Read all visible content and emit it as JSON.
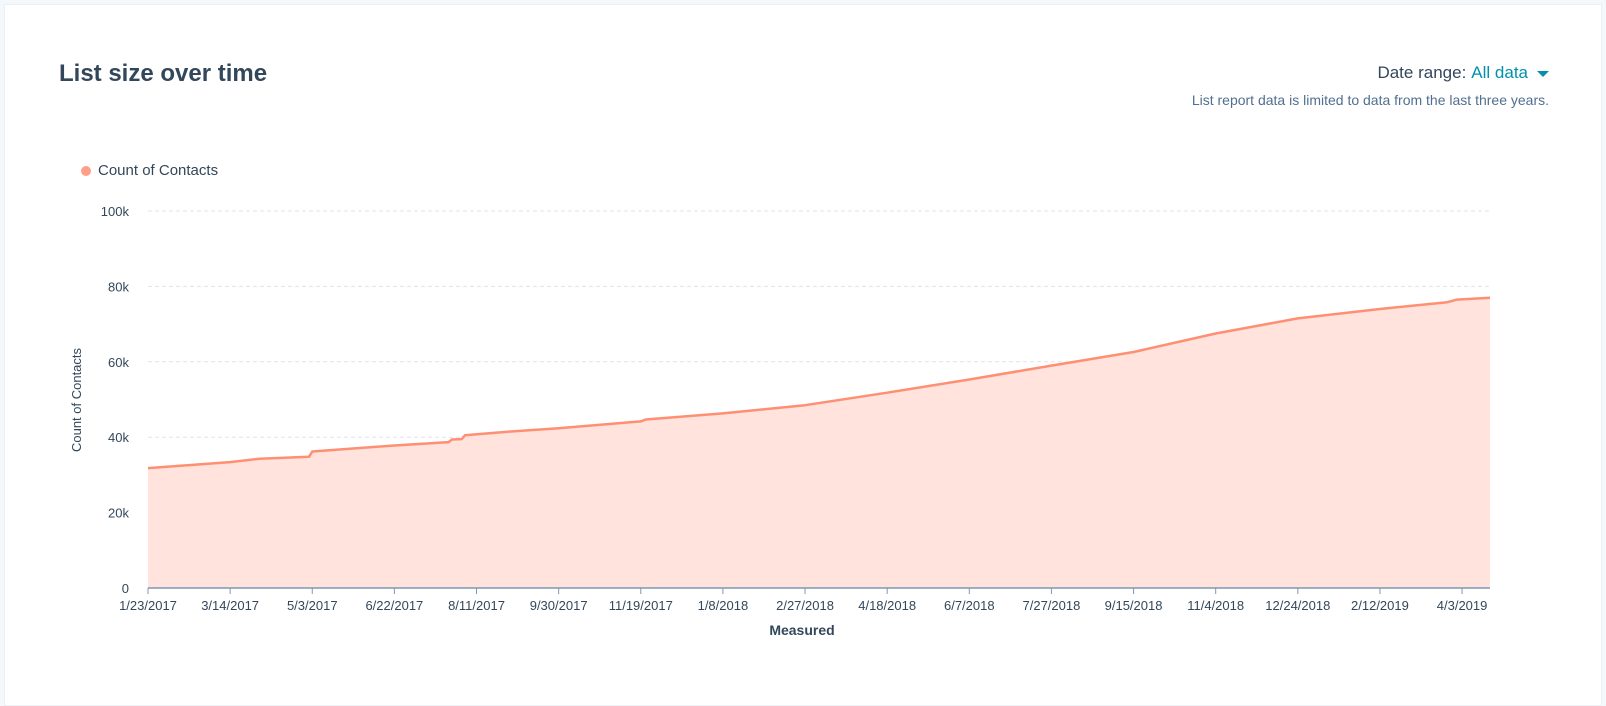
{
  "header": {
    "title": "List size over time",
    "date_range_label": "Date range:",
    "date_range_value": "All data",
    "note": "List report data is limited to data from the last three years."
  },
  "colors": {
    "line": "#ff8f73",
    "fill": "#ffe3dc",
    "accent": "#0091ae",
    "grid": "#dfe3eb",
    "axis": "#7c98b6",
    "text": "#33475b"
  },
  "chart_data": {
    "type": "area",
    "ylabel": "Count of Contacts",
    "xlabel": "Measured",
    "ylim": [
      0,
      100000
    ],
    "yticks": [
      {
        "value": 0,
        "label": "0"
      },
      {
        "value": 20000,
        "label": "20k"
      },
      {
        "value": 40000,
        "label": "40k"
      },
      {
        "value": 60000,
        "label": "60k"
      },
      {
        "value": 80000,
        "label": "80k"
      },
      {
        "value": 100000,
        "label": "100k"
      }
    ],
    "xlim": [
      "2017-01-23",
      "2019-04-20"
    ],
    "xticks": [
      {
        "date": "2017-01-23",
        "label": "1/23/2017"
      },
      {
        "date": "2017-03-14",
        "label": "3/14/2017"
      },
      {
        "date": "2017-05-03",
        "label": "5/3/2017"
      },
      {
        "date": "2017-06-22",
        "label": "6/22/2017"
      },
      {
        "date": "2017-08-11",
        "label": "8/11/2017"
      },
      {
        "date": "2017-09-30",
        "label": "9/30/2017"
      },
      {
        "date": "2017-11-19",
        "label": "11/19/2017"
      },
      {
        "date": "2018-01-08",
        "label": "1/8/2018"
      },
      {
        "date": "2018-02-27",
        "label": "2/27/2018"
      },
      {
        "date": "2018-04-18",
        "label": "4/18/2018"
      },
      {
        "date": "2018-06-07",
        "label": "6/7/2018"
      },
      {
        "date": "2018-07-27",
        "label": "7/27/2018"
      },
      {
        "date": "2018-09-15",
        "label": "9/15/2018"
      },
      {
        "date": "2018-11-04",
        "label": "11/4/2018"
      },
      {
        "date": "2018-12-24",
        "label": "12/24/2018"
      },
      {
        "date": "2019-02-12",
        "label": "2/12/2019"
      },
      {
        "date": "2019-04-03",
        "label": "4/3/2019"
      }
    ],
    "grid": true,
    "legend": "top-left",
    "series": [
      {
        "name": "Count of Contacts",
        "points": [
          {
            "x": "2017-01-23",
            "y": 31800
          },
          {
            "x": "2017-03-14",
            "y": 33400
          },
          {
            "x": "2017-04-01",
            "y": 34300
          },
          {
            "x": "2017-05-01",
            "y": 34800
          },
          {
            "x": "2017-05-03",
            "y": 36200
          },
          {
            "x": "2017-06-22",
            "y": 37800
          },
          {
            "x": "2017-07-25",
            "y": 38700
          },
          {
            "x": "2017-07-27",
            "y": 39400
          },
          {
            "x": "2017-08-02",
            "y": 39500
          },
          {
            "x": "2017-08-04",
            "y": 40500
          },
          {
            "x": "2017-09-01",
            "y": 41500
          },
          {
            "x": "2017-09-30",
            "y": 42400
          },
          {
            "x": "2017-11-19",
            "y": 44200
          },
          {
            "x": "2017-11-22",
            "y": 44700
          },
          {
            "x": "2018-01-08",
            "y": 46300
          },
          {
            "x": "2018-02-27",
            "y": 48500
          },
          {
            "x": "2018-04-18",
            "y": 51800
          },
          {
            "x": "2018-06-07",
            "y": 55300
          },
          {
            "x": "2018-07-27",
            "y": 59000
          },
          {
            "x": "2018-09-15",
            "y": 62600
          },
          {
            "x": "2018-11-04",
            "y": 67500
          },
          {
            "x": "2018-12-24",
            "y": 71500
          },
          {
            "x": "2019-02-12",
            "y": 74000
          },
          {
            "x": "2019-03-25",
            "y": 75800
          },
          {
            "x": "2019-03-31",
            "y": 76500
          },
          {
            "x": "2019-04-20",
            "y": 77000
          }
        ]
      }
    ]
  }
}
